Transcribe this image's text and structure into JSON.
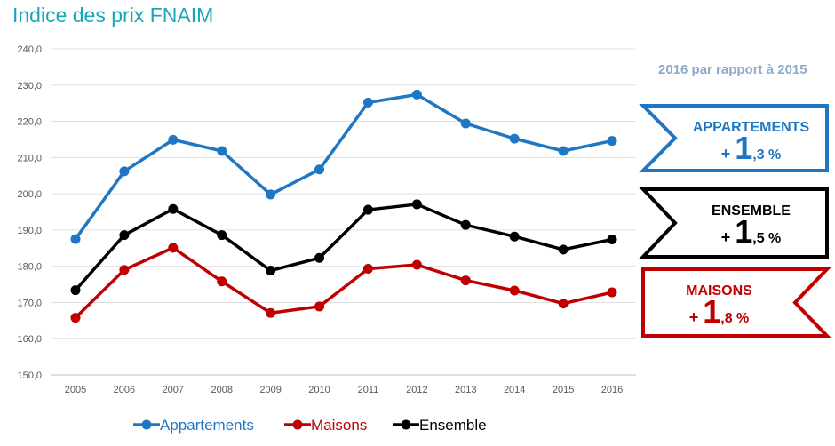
{
  "title": "Indice des prix FNAIM",
  "subtitle": "2016 par rapport à 2015",
  "chart_data": {
    "type": "line",
    "title": "Indice des prix FNAIM",
    "x": [
      "2005",
      "2006",
      "2007",
      "2008",
      "2009",
      "2010",
      "2011",
      "2012",
      "2013",
      "2014",
      "2015",
      "2016"
    ],
    "ylim": [
      150,
      240
    ],
    "yticks": [
      "150,0",
      "160,0",
      "170,0",
      "180,0",
      "190,0",
      "200,0",
      "210,0",
      "220,0",
      "230,0",
      "240,0"
    ],
    "grid": true,
    "legend_position": "bottom",
    "series": [
      {
        "name": "Appartements",
        "color": "#1f77c4",
        "values": [
          187.5,
          206.2,
          214.9,
          211.8,
          199.8,
          206.7,
          225.2,
          227.4,
          219.4,
          215.2,
          211.8,
          214.6
        ]
      },
      {
        "name": "Maisons",
        "color": "#c00000",
        "values": [
          165.8,
          179.0,
          185.1,
          175.8,
          167.1,
          168.9,
          179.3,
          180.4,
          176.1,
          173.3,
          169.7,
          172.8
        ]
      },
      {
        "name": "Ensemble",
        "color": "#000000",
        "values": [
          173.4,
          188.6,
          195.8,
          188.6,
          178.8,
          182.3,
          195.6,
          197.1,
          191.4,
          188.2,
          184.6,
          187.4
        ]
      }
    ]
  },
  "callouts": [
    {
      "label": "APPARTEMENTS",
      "plus": "+ ",
      "big": "1",
      "small": ",3 %",
      "color": "#1f77c4"
    },
    {
      "label": "ENSEMBLE",
      "plus": "+ ",
      "big": "1",
      "small": ",5 %",
      "color": "#000000"
    },
    {
      "label": "MAISONS",
      "plus": "+ ",
      "big": "1",
      "small": ",8 %",
      "color": "#c00000"
    }
  ]
}
